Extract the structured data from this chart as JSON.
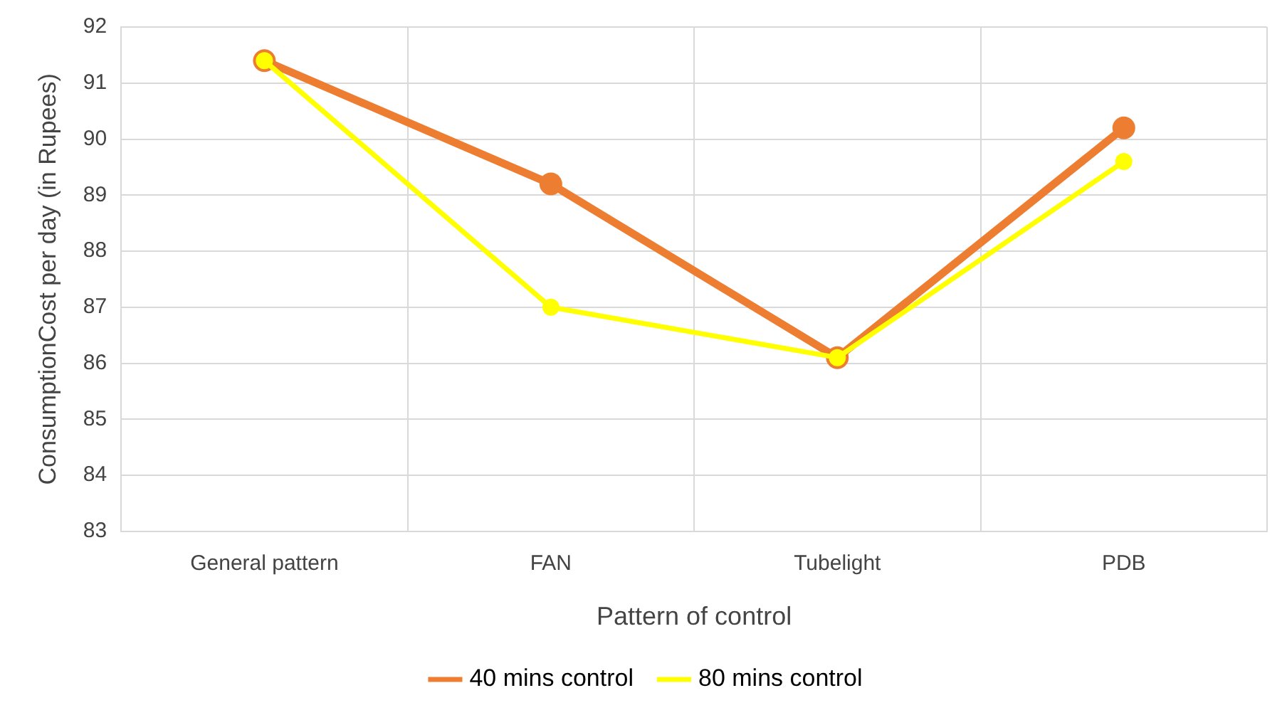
{
  "chart_data": {
    "type": "line",
    "xlabel": "Pattern of control",
    "ylabel": "ConsumptionCost per day (in Rupees)",
    "categories": [
      "General pattern",
      "FAN",
      "Tubelight",
      "PDB"
    ],
    "series": [
      {
        "name": "40 mins control",
        "color": "#ed7d31",
        "values": [
          91.4,
          89.2,
          86.1,
          90.2
        ]
      },
      {
        "name": "80 mins control",
        "color": "#ffff00",
        "values": [
          91.4,
          87.0,
          86.1,
          89.6
        ]
      }
    ],
    "ylim": [
      83,
      92
    ],
    "yticks": [
      83,
      84,
      85,
      86,
      87,
      88,
      89,
      90,
      91,
      92
    ],
    "grid": true,
    "legend": "bottom",
    "marker": "circle",
    "line_style": "solid"
  }
}
